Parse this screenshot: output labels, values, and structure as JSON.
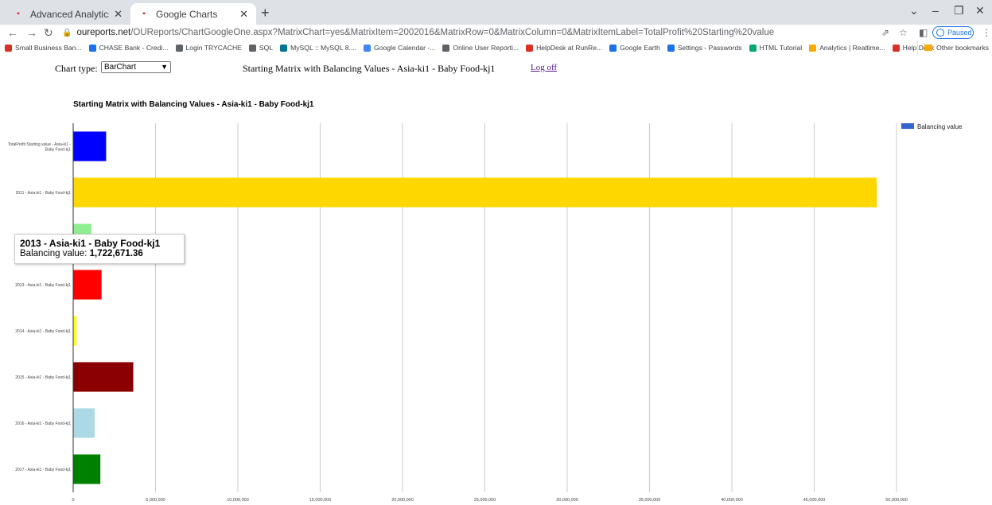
{
  "browser": {
    "tabs": [
      {
        "title": "Advanced Analytics",
        "active": false
      },
      {
        "title": "Google Charts",
        "active": true
      }
    ],
    "url_host": "oureports.net",
    "url_path": "/OUReports/ChartGoogleOne.aspx?MatrixChart=yes&MatrixItem=2002016&MatrixRow=0&MatrixColumn=0&MatrixItemLabel=TotalProfit%20Starting%20value",
    "profile_label": "Paused",
    "bookmarks": [
      {
        "label": "Small Business Ban...",
        "color": "#d93025"
      },
      {
        "label": "CHASE Bank - Credi...",
        "color": "#1a73e8"
      },
      {
        "label": "Login TRYCACHE",
        "color": "#5f6368"
      },
      {
        "label": "SQL",
        "color": "#5f6368"
      },
      {
        "label": "MySQL :: MySQL 8....",
        "color": "#00758f"
      },
      {
        "label": "Google Calendar -...",
        "color": "#4285f4"
      },
      {
        "label": "Online User Reporti...",
        "color": "#5f6368"
      },
      {
        "label": "HelpDesk at RunRe...",
        "color": "#d93025"
      },
      {
        "label": "Google Earth",
        "color": "#1a73e8"
      },
      {
        "label": "Settings - Passwords",
        "color": "#1a73e8"
      },
      {
        "label": "HTML Tutorial",
        "color": "#04aa6d"
      },
      {
        "label": "Analytics | Realtime...",
        "color": "#f9ab00"
      },
      {
        "label": "Help Desk",
        "color": "#d93025"
      }
    ],
    "other_bookmarks": "Other bookmarks"
  },
  "controls": {
    "chart_type_label": "Chart type:",
    "chart_type_value": "BarChart",
    "page_title": "Starting Matrix with Balancing Values - Asia-ki1 - Baby Food-kj1",
    "logoff": "Log off"
  },
  "tooltip": {
    "title": "2013 - Asia-ki1 - Baby Food-kj1",
    "label": "Balancing value: ",
    "value": "1,722,671.36"
  },
  "chart_data": {
    "type": "bar",
    "orientation": "horizontal",
    "title": "Starting Matrix with Balancing Values - Asia-ki1 - Baby Food-kj1",
    "categories": [
      "TotalProfit Starting value - Asia-ki1 - Baby Food-kj1",
      "2011 - Asia-ki1 - Baby Food-kj1",
      "2012 - Asia-ki1 - Baby Food-kj1",
      "2013 - Asia-ki1 - Baby Food-kj1",
      "2014 - Asia-ki1 - Baby Food-kj1",
      "2015 - Asia-ki1 - Baby Food-kj1",
      "2016 - Asia-ki1 - Baby Food-kj1",
      "2017 - Asia-ki1 - Baby Food-kj1"
    ],
    "category_lines": [
      [
        "TotalProfit Starting value - Asia-ki1 -",
        "Baby Food-kj1"
      ],
      [
        "2011 - Asia-ki1 - Baby Food-kj1"
      ],
      [
        "2012 - Asia-ki1 - Baby Food-kj1"
      ],
      [
        "2013 - Asia-ki1 - Baby Food-kj1"
      ],
      [
        "2014 - Asia-ki1 - Baby Food-kj1"
      ],
      [
        "2015 - Asia-ki1 - Baby Food-kj1"
      ],
      [
        "2016 - Asia-ki1 - Baby Food-kj1"
      ],
      [
        "2017 - Asia-ki1 - Baby Food-kj1"
      ]
    ],
    "series": [
      {
        "name": "Balancing value",
        "values": [
          2000000,
          48800000,
          1100000,
          1722671.36,
          200000,
          3650000,
          1300000,
          1650000
        ]
      }
    ],
    "bar_colors": [
      "#0000ff",
      "#ffd700",
      "#90ee90",
      "#ff0000",
      "#ffff00",
      "#8b0000",
      "#add8e6",
      "#008000"
    ],
    "legend_color": "#3366cc",
    "legend_position": "right",
    "xlim": [
      0,
      50000000
    ],
    "x_ticks": [
      0,
      5000000,
      10000000,
      15000000,
      20000000,
      25000000,
      30000000,
      35000000,
      40000000,
      45000000,
      50000000
    ],
    "x_tick_labels": [
      "0",
      "5,000,000",
      "10,000,000",
      "15,000,000",
      "20,000,000",
      "25,000,000",
      "30,000,000",
      "35,000,000",
      "40,000,000",
      "45,000,000",
      "50,000,000"
    ],
    "grid": true
  }
}
